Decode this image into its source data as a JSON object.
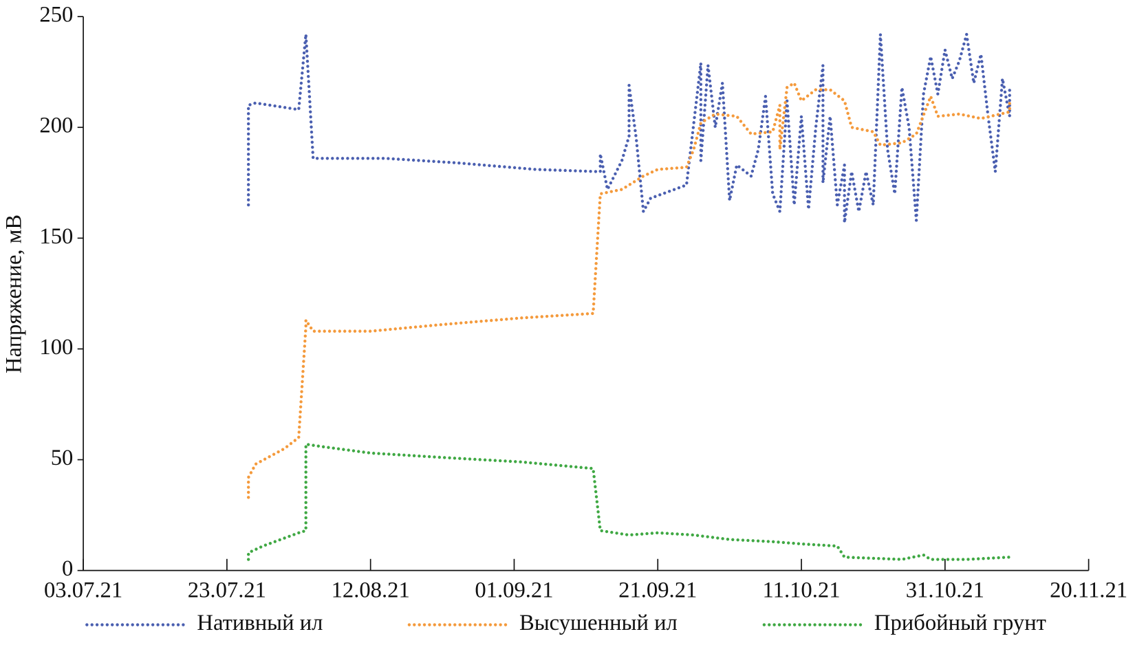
{
  "chart_data": {
    "type": "line",
    "ylabel": "Напряжение, мВ",
    "xlim": [
      "2021-07-03",
      "2021-11-20"
    ],
    "xticks": [
      {
        "value": "2021-07-03",
        "label": "03.07.21"
      },
      {
        "value": "2021-07-23",
        "label": "23.07.21"
      },
      {
        "value": "2021-08-12",
        "label": "12.08.21"
      },
      {
        "value": "2021-09-01",
        "label": "01.09.21"
      },
      {
        "value": "2021-09-21",
        "label": "21.09.21"
      },
      {
        "value": "2021-10-11",
        "label": "11.10.21"
      },
      {
        "value": "2021-10-31",
        "label": "31.10.21"
      },
      {
        "value": "2021-11-20",
        "label": "20.11.21"
      }
    ],
    "ylim": [
      0,
      250
    ],
    "yticks": [
      0,
      50,
      100,
      150,
      200,
      250
    ],
    "legend": "bottom",
    "series": [
      {
        "name": "Нативный ил",
        "color": "#4a5fb0",
        "x": [
          "2021-07-26",
          "2021-07-26",
          "2021-07-27",
          "2021-08-02",
          "2021-08-03",
          "2021-08-04",
          "2021-08-14",
          "2021-08-24",
          "2021-09-04",
          "2021-09-13",
          "2021-09-13",
          "2021-09-14",
          "2021-09-16",
          "2021-09-17",
          "2021-09-17",
          "2021-09-18",
          "2021-09-19",
          "2021-09-20",
          "2021-09-25",
          "2021-09-27",
          "2021-09-27",
          "2021-09-28",
          "2021-09-29",
          "2021-09-30",
          "2021-10-01",
          "2021-10-02",
          "2021-10-04",
          "2021-10-05",
          "2021-10-06",
          "2021-10-07",
          "2021-10-08",
          "2021-10-09",
          "2021-10-10",
          "2021-10-11",
          "2021-10-12",
          "2021-10-13",
          "2021-10-14",
          "2021-10-14",
          "2021-10-15",
          "2021-10-16",
          "2021-10-17",
          "2021-10-17",
          "2021-10-18",
          "2021-10-19",
          "2021-10-20",
          "2021-10-21",
          "2021-10-22",
          "2021-10-23",
          "2021-10-24",
          "2021-10-25",
          "2021-10-26",
          "2021-10-27",
          "2021-10-28",
          "2021-10-29",
          "2021-10-30",
          "2021-10-31",
          "2021-11-01",
          "2021-11-02",
          "2021-11-03",
          "2021-11-04",
          "2021-11-05",
          "2021-11-06",
          "2021-11-07",
          "2021-11-08",
          "2021-11-09",
          "2021-11-09"
        ],
        "values": [
          165,
          210,
          211,
          208,
          242,
          186,
          186,
          184,
          181,
          180,
          188,
          172,
          185,
          196,
          219,
          195,
          162,
          168,
          174,
          229,
          185,
          228,
          200,
          220,
          167,
          183,
          178,
          190,
          214,
          170,
          162,
          212,
          165,
          205,
          163,
          200,
          228,
          175,
          205,
          165,
          183,
          157,
          180,
          162,
          180,
          165,
          242,
          190,
          170,
          218,
          200,
          158,
          215,
          232,
          215,
          235,
          222,
          230,
          242,
          220,
          233,
          205,
          180,
          222,
          205,
          218
        ]
      },
      {
        "name": "Высушенный ил",
        "color": "#f49a3c",
        "x": [
          "2021-07-26",
          "2021-07-26",
          "2021-07-27",
          "2021-07-31",
          "2021-08-02",
          "2021-08-03",
          "2021-08-03",
          "2021-08-04",
          "2021-08-12",
          "2021-08-22",
          "2021-09-02",
          "2021-09-12",
          "2021-09-13",
          "2021-09-16",
          "2021-09-19",
          "2021-09-21",
          "2021-09-25",
          "2021-09-26",
          "2021-09-27",
          "2021-09-29",
          "2021-10-02",
          "2021-10-04",
          "2021-10-07",
          "2021-10-08",
          "2021-10-08",
          "2021-10-09",
          "2021-10-10",
          "2021-10-11",
          "2021-10-13",
          "2021-10-15",
          "2021-10-17",
          "2021-10-18",
          "2021-10-21",
          "2021-10-22",
          "2021-10-25",
          "2021-10-27",
          "2021-10-29",
          "2021-10-30",
          "2021-11-02",
          "2021-11-05",
          "2021-11-09",
          "2021-11-09"
        ],
        "values": [
          33,
          42,
          48,
          55,
          60,
          110,
          113,
          108,
          108,
          111,
          114,
          116,
          170,
          172,
          178,
          181,
          182,
          190,
          202,
          206,
          205,
          197,
          198,
          210,
          190,
          218,
          220,
          212,
          217,
          217,
          212,
          200,
          198,
          192,
          193,
          197,
          214,
          205,
          206,
          204,
          207,
          213
        ]
      },
      {
        "name": "Прибойный грунт",
        "color": "#3fa843",
        "x": [
          "2021-07-26",
          "2021-07-26",
          "2021-07-28",
          "2021-08-02",
          "2021-08-03",
          "2021-08-03",
          "2021-08-05",
          "2021-08-12",
          "2021-08-22",
          "2021-09-02",
          "2021-09-12",
          "2021-09-13",
          "2021-09-17",
          "2021-09-21",
          "2021-09-26",
          "2021-10-01",
          "2021-10-07",
          "2021-10-11",
          "2021-10-16",
          "2021-10-17",
          "2021-10-25",
          "2021-10-28",
          "2021-10-29",
          "2021-11-03",
          "2021-11-09"
        ],
        "values": [
          5,
          8,
          11,
          17,
          18,
          57,
          56,
          53,
          51,
          49,
          46,
          18,
          16,
          17,
          16,
          14,
          13,
          12,
          11,
          6,
          5,
          7,
          5,
          5,
          6
        ]
      }
    ]
  }
}
